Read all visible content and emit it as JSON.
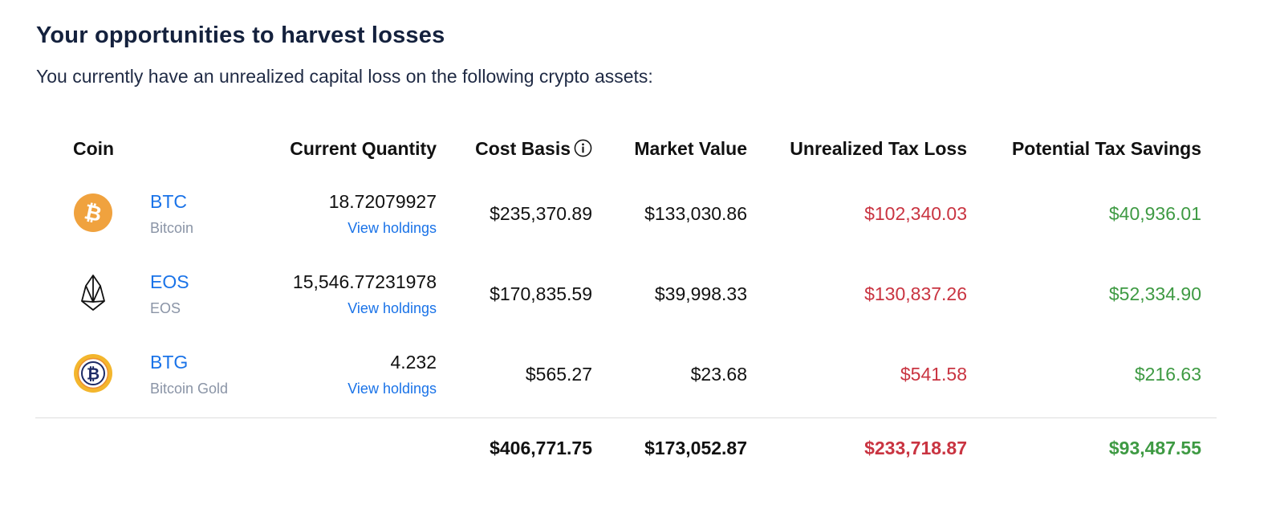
{
  "heading": "Your opportunities to harvest losses",
  "description": "You currently have an unrealized capital loss on the following crypto assets:",
  "columns": {
    "coin": "Coin",
    "current_quantity": "Current Quantity",
    "cost_basis": "Cost Basis",
    "market_value": "Market Value",
    "unrealized_tax_loss": "Unrealized Tax Loss",
    "potential_tax_savings": "Potential Tax Savings"
  },
  "colors": {
    "link": "#1a73e8",
    "loss": "#c93441",
    "savings": "#3e9a43",
    "btc": "#f0a23e",
    "btg": "#f3b62d"
  },
  "rows": [
    {
      "icon": "bitcoin-icon",
      "symbol": "BTC",
      "name": "Bitcoin",
      "quantity": "18.72079927",
      "view_holdings": "View holdings",
      "cost_basis": "$235,370.89",
      "market_value": "$133,030.86",
      "unrealized_tax_loss": "$102,340.03",
      "potential_tax_savings": "$40,936.01"
    },
    {
      "icon": "eos-icon",
      "symbol": "EOS",
      "name": "EOS",
      "quantity": "15,546.77231978",
      "view_holdings": "View holdings",
      "cost_basis": "$170,835.59",
      "market_value": "$39,998.33",
      "unrealized_tax_loss": "$130,837.26",
      "potential_tax_savings": "$52,334.90"
    },
    {
      "icon": "bitcoin-gold-icon",
      "symbol": "BTG",
      "name": "Bitcoin Gold",
      "quantity": "4.232",
      "view_holdings": "View holdings",
      "cost_basis": "$565.27",
      "market_value": "$23.68",
      "unrealized_tax_loss": "$541.58",
      "potential_tax_savings": "$216.63"
    }
  ],
  "totals": {
    "cost_basis": "$406,771.75",
    "market_value": "$173,052.87",
    "unrealized_tax_loss": "$233,718.87",
    "potential_tax_savings": "$93,487.55"
  }
}
